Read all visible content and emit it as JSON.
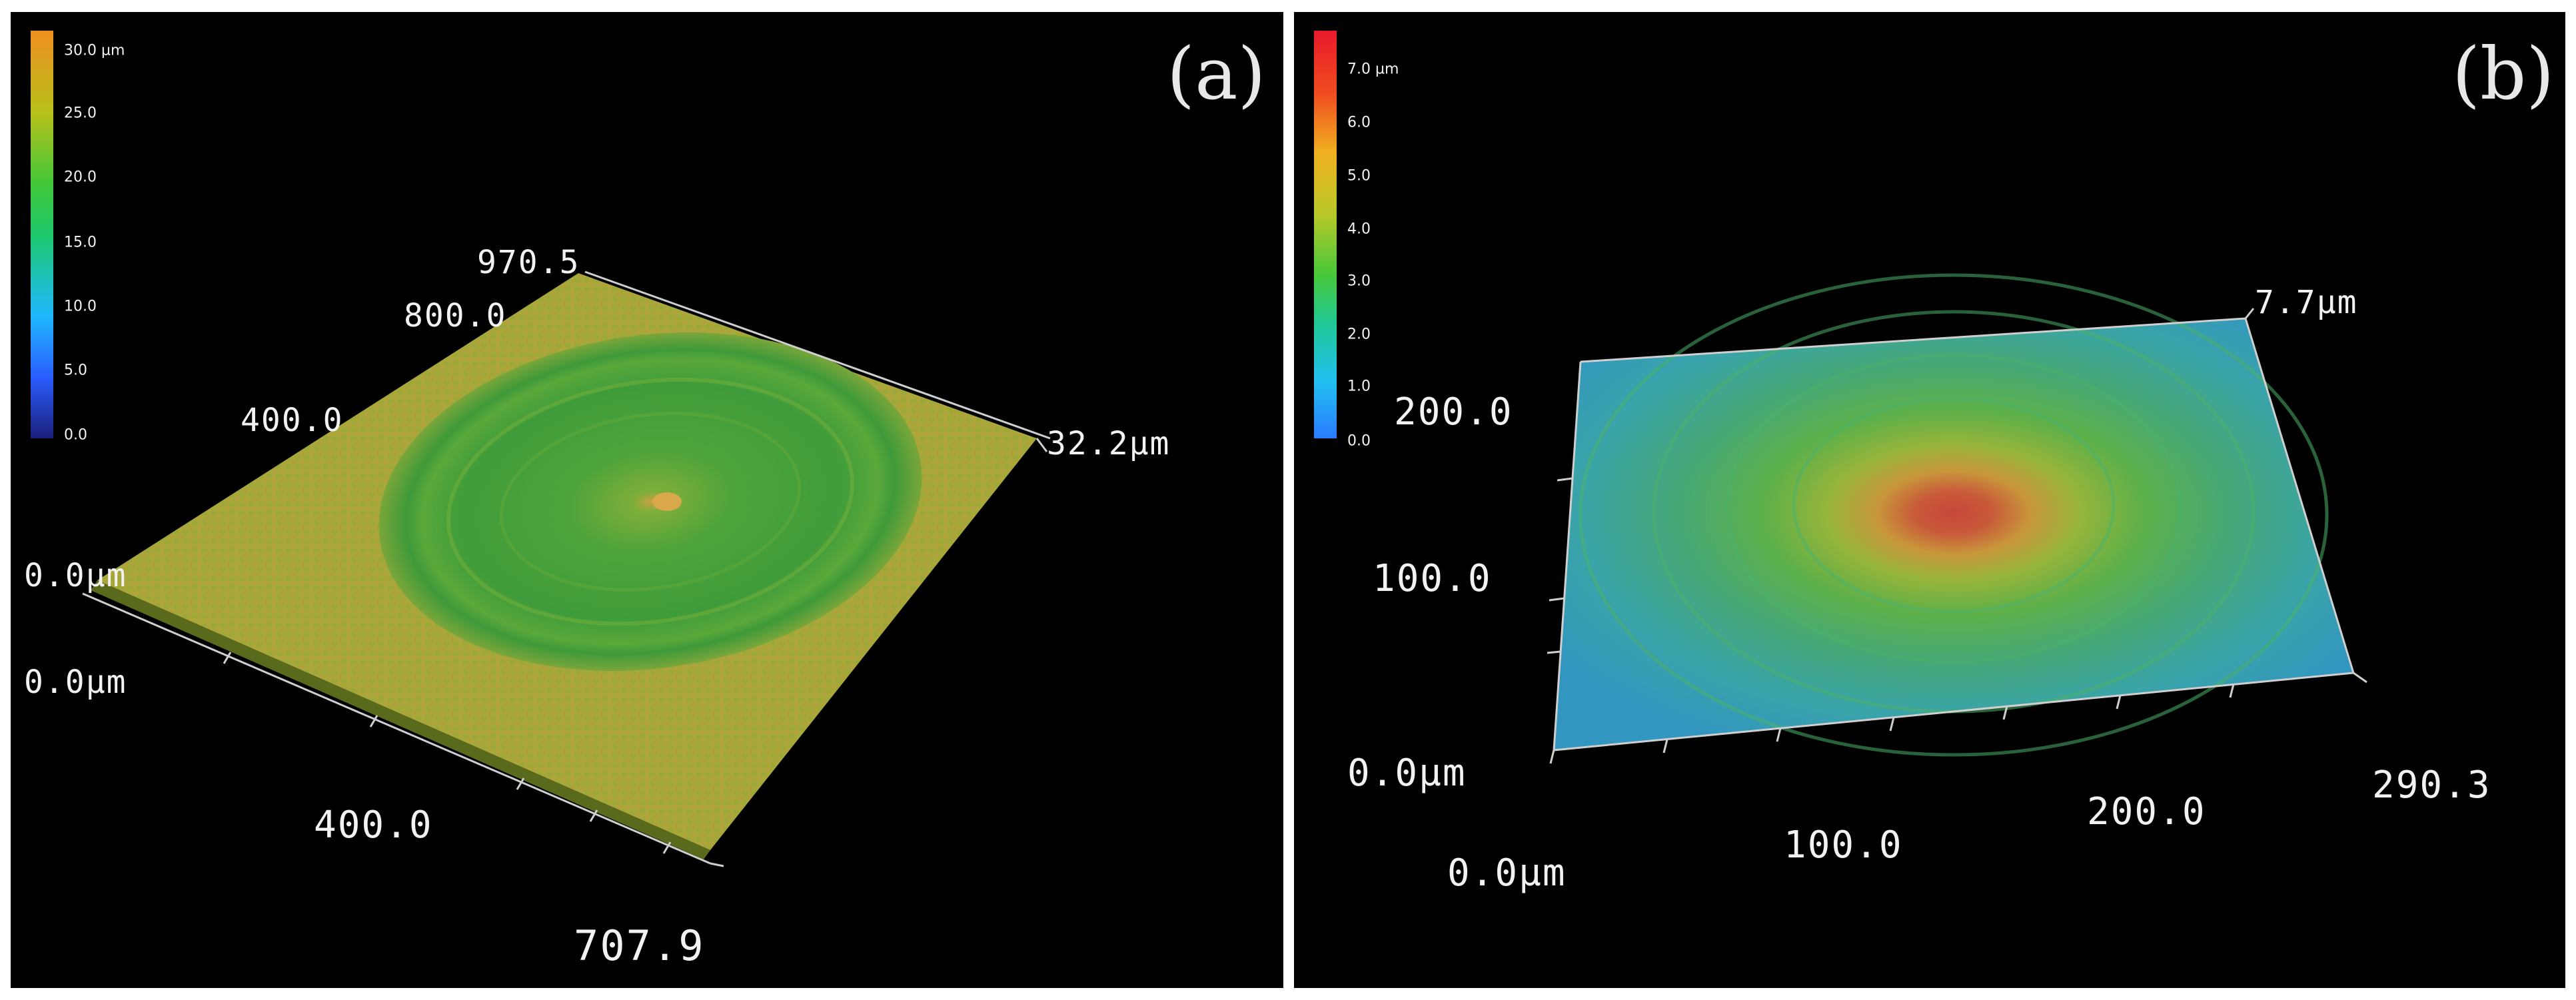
{
  "panel_a": {
    "label": "(a)",
    "colorbar": {
      "ticks": [
        "30.0 µm",
        "25.0",
        "20.0",
        "15.0",
        "10.0",
        "5.0",
        "0.0"
      ]
    },
    "axis_labels": {
      "y_max": "970.5",
      "y_800": "800.0",
      "y_400": "400.0",
      "y_origin": "0.0µm",
      "z_max": "32.2µm",
      "x_origin": "0.0µm",
      "x_400": "400.0",
      "x_max": "707.9"
    }
  },
  "panel_b": {
    "label": "(b)",
    "colorbar": {
      "ticks": [
        "7.0 µm",
        "6.0",
        "5.0",
        "4.0",
        "3.0",
        "2.0",
        "1.0",
        "0.0"
      ]
    },
    "axis_labels": {
      "z_max": "7.7µm",
      "y_200": "200.0",
      "y_100": "100.0",
      "y_origin": "0.0µm",
      "x_origin": "0.0µm",
      "x_100": "100.0",
      "x_200": "200.0",
      "x_max": "290.3"
    }
  }
}
